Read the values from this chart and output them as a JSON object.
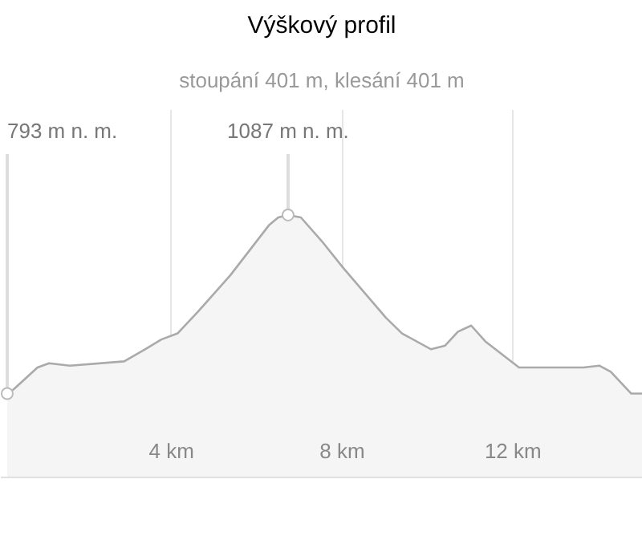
{
  "chart_data": {
    "type": "area",
    "title": "Výškový profil",
    "subtitle": "stoupání 401 m, klesání 401 m",
    "x": [
      0.15,
      0.3,
      0.86,
      1.13,
      1.62,
      2.89,
      3.38,
      3.76,
      4.14,
      4.62,
      5.38,
      6.28,
      6.5,
      6.73,
      7.03,
      7.52,
      8.01,
      9.02,
      9.4,
      10.08,
      10.41,
      10.71,
      11.02,
      11.35,
      12.14,
      13.65,
      14.02,
      14.29,
      14.77,
      15.04
    ],
    "values": [
      793,
      800,
      836,
      843,
      839,
      846,
      866,
      882,
      892,
      928,
      988,
      1070,
      1083,
      1087,
      1083,
      1044,
      1001,
      918,
      892,
      866,
      872,
      895,
      905,
      879,
      836,
      836,
      839,
      829,
      793,
      793
    ],
    "value_labels": [
      "793 m n. m.",
      null,
      null,
      null,
      null,
      null,
      null,
      null,
      null,
      null,
      null,
      null,
      null,
      "1087 m n. m.",
      null,
      null,
      null,
      null,
      null,
      null,
      null,
      null,
      null,
      null,
      null,
      null,
      null,
      null,
      null,
      null
    ],
    "color": "#aaaaaa",
    "xlim": [
      0,
      15.04
    ],
    "ylim": [
      655,
      1260
    ],
    "xticks": [
      {
        "value": 4,
        "label": "4 km"
      },
      {
        "value": 8,
        "label": "8 km"
      },
      {
        "value": 12,
        "label": "12 km"
      }
    ],
    "grid": "x"
  }
}
